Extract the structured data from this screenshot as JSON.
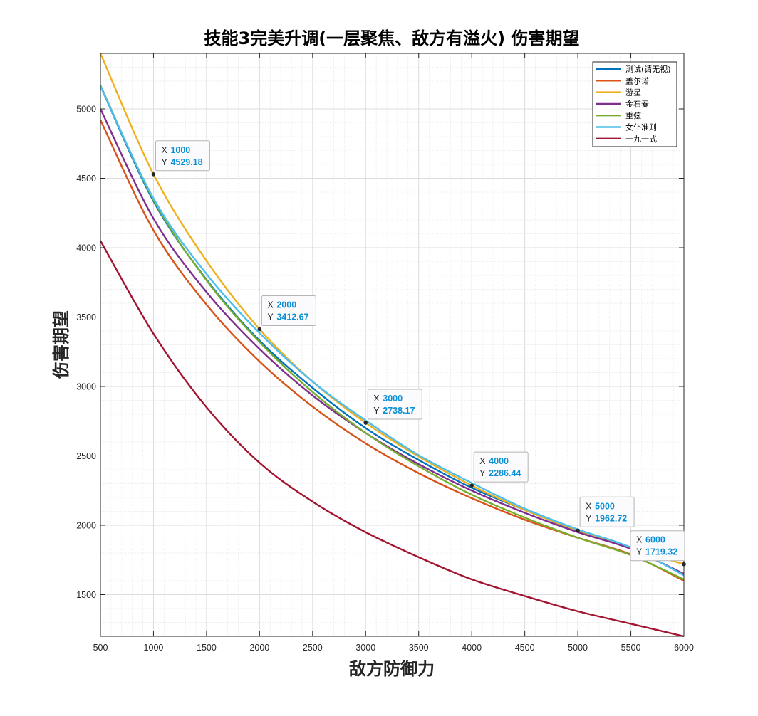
{
  "chart_data": {
    "type": "line",
    "title": "技能3完美升调(一层聚焦、敌方有溢火) 伤害期望",
    "xlabel": "敌方防御力",
    "ylabel": "伤害期望",
    "xlim": [
      500,
      6000
    ],
    "ylim": [
      1200,
      5400
    ],
    "xticks": [
      500,
      1000,
      1500,
      2000,
      2500,
      3000,
      3500,
      4000,
      4500,
      5000,
      5500,
      6000
    ],
    "yticks": [
      1500,
      2000,
      2500,
      3000,
      3500,
      4000,
      4500,
      5000
    ],
    "grid": true,
    "minor_grid": true,
    "legend_position": "top-right",
    "x": [
      500,
      1000,
      1500,
      2000,
      2500,
      3000,
      3500,
      4000,
      4500,
      5000,
      5500,
      6000
    ],
    "series": [
      {
        "name": "测试(请无视)",
        "color": "#0072bd",
        "values": [
          5165,
          4335,
          3770,
          3330,
          2990,
          2700,
          2470,
          2270,
          2110,
          1960,
          1840,
          1640
        ]
      },
      {
        "name": "盖尔诺",
        "color": "#d95319",
        "values": [
          4920,
          4125,
          3590,
          3180,
          2855,
          2590,
          2375,
          2195,
          2040,
          1910,
          1790,
          1600
        ]
      },
      {
        "name": "游星",
        "color": "#edb120",
        "values": [
          5400,
          4529.18,
          3905,
          3412.67,
          3035,
          2738.17,
          2495,
          2286.44,
          2110,
          1962.72,
          1835,
          1719.32
        ]
      },
      {
        "name": "金石奏",
        "color": "#7e2f8e",
        "values": [
          5000,
          4210,
          3680,
          3270,
          2935,
          2665,
          2440,
          2250,
          2090,
          1950,
          1830,
          1650
        ]
      },
      {
        "name": "重弦",
        "color": "#77ac30",
        "values": [
          5170,
          4345,
          3765,
          3320,
          2960,
          2665,
          2425,
          2220,
          2055,
          1910,
          1785,
          1610
        ]
      },
      {
        "name": "女仆准则",
        "color": "#4dbeee",
        "values": [
          5165,
          4355,
          3810,
          3385,
          3035,
          2755,
          2505,
          2305,
          2120,
          1970,
          1840,
          1640
        ]
      },
      {
        "name": "一九一式",
        "color": "#a2142f",
        "values": [
          4050,
          3380,
          2850,
          2450,
          2170,
          1950,
          1770,
          1610,
          1490,
          1380,
          1290,
          1200
        ]
      }
    ],
    "datatips": [
      {
        "x_key": "X",
        "y_key": "Y",
        "x": "1000",
        "y": "4529.18"
      },
      {
        "x_key": "X",
        "y_key": "Y",
        "x": "2000",
        "y": "3412.67"
      },
      {
        "x_key": "X",
        "y_key": "Y",
        "x": "3000",
        "y": "2738.17"
      },
      {
        "x_key": "X",
        "y_key": "Y",
        "x": "4000",
        "y": "2286.44"
      },
      {
        "x_key": "X",
        "y_key": "Y",
        "x": "5000",
        "y": "1962.72"
      },
      {
        "x_key": "X",
        "y_key": "Y",
        "x": "6000",
        "y": "1719.32"
      }
    ]
  }
}
